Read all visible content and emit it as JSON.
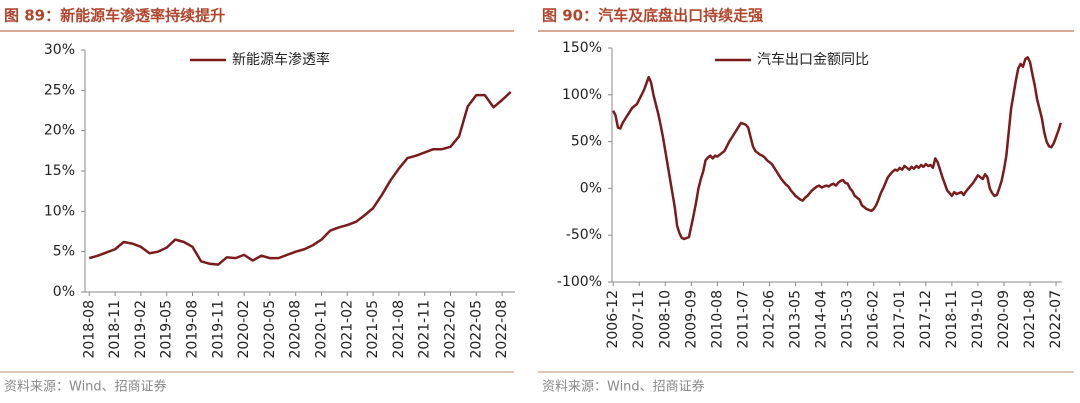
{
  "chart_data": [
    {
      "type": "line",
      "title": "图 89：新能源车渗透率持续提升",
      "source": "资料来源：Wind、招商证券",
      "categories": [
        "2018-08",
        null,
        null,
        "2018-11",
        null,
        null,
        "2019-02",
        null,
        null,
        "2019-05",
        null,
        null,
        "2019-08",
        null,
        null,
        "2019-11",
        null,
        null,
        "2020-02",
        null,
        null,
        "2020-05",
        null,
        null,
        "2020-08",
        null,
        null,
        "2020-11",
        null,
        null,
        "2021-02",
        null,
        null,
        "2021-05",
        null,
        null,
        "2021-08",
        null,
        null,
        "2021-11",
        null,
        null,
        "2022-02",
        null,
        null,
        "2022-05",
        null,
        null,
        "2022-08",
        null
      ],
      "series": [
        {
          "name": "新能源车渗透率",
          "color": "#7b1b1b",
          "values": [
            4.2,
            4.5,
            4.9,
            5.3,
            6.2,
            6.0,
            5.6,
            4.8,
            5.0,
            5.5,
            6.5,
            6.2,
            5.6,
            3.8,
            3.5,
            3.4,
            4.3,
            4.2,
            4.6,
            3.9,
            4.5,
            4.2,
            4.2,
            4.6,
            5.0,
            5.3,
            5.8,
            6.5,
            7.6,
            8.0,
            8.3,
            8.7,
            9.5,
            10.4,
            12.0,
            13.8,
            15.3,
            16.6,
            16.9,
            17.3,
            17.7,
            17.7,
            18.0,
            19.3,
            23.0,
            24.4,
            24.4,
            22.9,
            23.8,
            24.8
          ]
        }
      ],
      "ylim": [
        0,
        30
      ],
      "yticks": [
        {
          "value": 0,
          "label": "0%"
        },
        {
          "value": 5,
          "label": "5%"
        },
        {
          "value": 10,
          "label": "10%"
        },
        {
          "value": 15,
          "label": "15%"
        },
        {
          "value": 20,
          "label": "20%"
        },
        {
          "value": 25,
          "label": "25%"
        },
        {
          "value": 30,
          "label": "30%"
        }
      ],
      "legend": "top"
    },
    {
      "type": "line",
      "title": "图 90：汽车及底盘出口持续走强",
      "source": "资料来源：Wind、招商证券",
      "categories": [
        "2006-12",
        null,
        null,
        null,
        null,
        null,
        null,
        null,
        null,
        null,
        null,
        "2007-11",
        null,
        null,
        null,
        null,
        null,
        null,
        null,
        null,
        null,
        null,
        "2008-10",
        null,
        null,
        null,
        null,
        null,
        null,
        null,
        null,
        null,
        null,
        "2009-09",
        null,
        null,
        null,
        null,
        null,
        null,
        null,
        null,
        null,
        null,
        "2010-08",
        null,
        null,
        null,
        null,
        null,
        null,
        null,
        null,
        null,
        null,
        "2011-07",
        null,
        null,
        null,
        null,
        null,
        null,
        null,
        null,
        null,
        null,
        "2012-06",
        null,
        null,
        null,
        null,
        null,
        null,
        null,
        null,
        null,
        null,
        "2013-05",
        null,
        null,
        null,
        null,
        null,
        null,
        null,
        null,
        null,
        null,
        "2014-04",
        null,
        null,
        null,
        null,
        null,
        null,
        null,
        null,
        null,
        null,
        "2015-03",
        null,
        null,
        null,
        null,
        null,
        null,
        null,
        null,
        null,
        null,
        "2016-02",
        null,
        null,
        null,
        null,
        null,
        null,
        null,
        null,
        null,
        null,
        "2017-01",
        null,
        null,
        null,
        null,
        null,
        null,
        null,
        null,
        null,
        null,
        "2017-12",
        null,
        null,
        null,
        null,
        null,
        null,
        null,
        null,
        null,
        null,
        "2018-11",
        null,
        null,
        null,
        null,
        null,
        null,
        null,
        null,
        null,
        null,
        "2019-10",
        null,
        null,
        null,
        null,
        null,
        null,
        null,
        null,
        null,
        null,
        "2020-09",
        null,
        null,
        null,
        null,
        null,
        null,
        null,
        null,
        null,
        null,
        "2021-08",
        null,
        null,
        null,
        null,
        null,
        null,
        null,
        null,
        null,
        null,
        "2022-07",
        null,
        null
      ],
      "series": [
        {
          "name": "汽车出口金额同比",
          "color": "#7b1b1b",
          "values": [
            83,
            78,
            65,
            64,
            70,
            74,
            78,
            82,
            86,
            88,
            90,
            95,
            100,
            105,
            112,
            119,
            113,
            100,
            90,
            80,
            68,
            55,
            40,
            25,
            10,
            -5,
            -20,
            -40,
            -48,
            -53,
            -54,
            -53,
            -52,
            -40,
            -28,
            -15,
            0,
            10,
            18,
            30,
            33,
            35,
            32,
            35,
            34,
            36,
            38,
            40,
            45,
            50,
            54,
            58,
            62,
            66,
            70,
            69,
            68,
            65,
            55,
            45,
            40,
            38,
            36,
            35,
            33,
            30,
            28,
            26,
            22,
            18,
            14,
            10,
            7,
            4,
            2,
            -2,
            -5,
            -8,
            -10,
            -12,
            -13,
            -10,
            -8,
            -5,
            -2,
            0,
            2,
            3,
            1,
            2,
            3,
            2,
            4,
            5,
            3,
            6,
            8,
            9,
            6,
            5,
            0,
            -3,
            -8,
            -10,
            -12,
            -18,
            -20,
            -22,
            -23,
            -24,
            -22,
            -18,
            -12,
            -5,
            0,
            6,
            12,
            15,
            18,
            20,
            19,
            22,
            20,
            24,
            22,
            20,
            23,
            21,
            24,
            22,
            25,
            23,
            26,
            24,
            25,
            22,
            32,
            28,
            20,
            12,
            5,
            -2,
            -5,
            -8,
            -4,
            -6,
            -5,
            -4,
            -7,
            -3,
            0,
            3,
            6,
            10,
            14,
            12,
            10,
            15,
            12,
            0,
            -5,
            -8,
            -7,
            0,
            8,
            20,
            35,
            60,
            85,
            100,
            115,
            128,
            133,
            130,
            138,
            140,
            135,
            122,
            110,
            95,
            85,
            75,
            60,
            50,
            45,
            44,
            48,
            55,
            62,
            70
          ]
        }
      ],
      "ylim": [
        -100,
        150
      ],
      "yticks": [
        {
          "value": -100,
          "label": "-100%"
        },
        {
          "value": -50,
          "label": "-50%"
        },
        {
          "value": 0,
          "label": "0%"
        },
        {
          "value": 50,
          "label": "50%"
        },
        {
          "value": 100,
          "label": "100%"
        },
        {
          "value": 150,
          "label": "150%"
        }
      ],
      "legend": "top"
    }
  ]
}
